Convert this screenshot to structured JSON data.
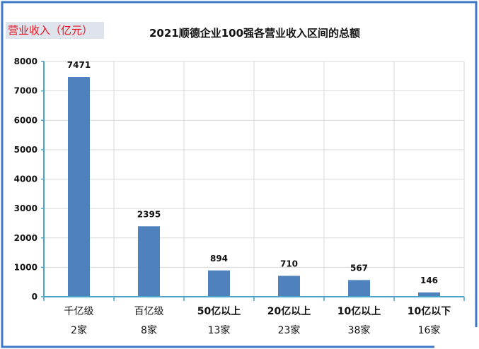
{
  "header": {
    "unit_label": "营业收入（亿元）",
    "title": "2021顺德企业100强各营业收入区间的总额"
  },
  "colors": {
    "bar": "#4f81bd",
    "frame": "#3c78c8",
    "axis": "#4aa3c8",
    "grid": "#d9d9d9",
    "unit_label_text": "#e8121c",
    "unit_label_bg": "#dfe3ec"
  },
  "chart_data": {
    "type": "bar",
    "title": "2021顺德企业100强各营业收入区间的总额",
    "ylabel": "营业收入（亿元）",
    "xlabel": "",
    "categories": [
      "千亿级",
      "百亿级",
      "50亿以上",
      "20亿以上",
      "10亿以上",
      "10亿以下"
    ],
    "counts": [
      "2家",
      "8家",
      "13家",
      "23家",
      "38家",
      "16家"
    ],
    "values": [
      7471,
      2395,
      894,
      710,
      567,
      146
    ],
    "ylim": [
      0,
      8000
    ],
    "yticks": [
      0,
      1000,
      2000,
      3000,
      4000,
      5000,
      6000,
      7000,
      8000
    ],
    "grid": true,
    "legend": "none"
  }
}
